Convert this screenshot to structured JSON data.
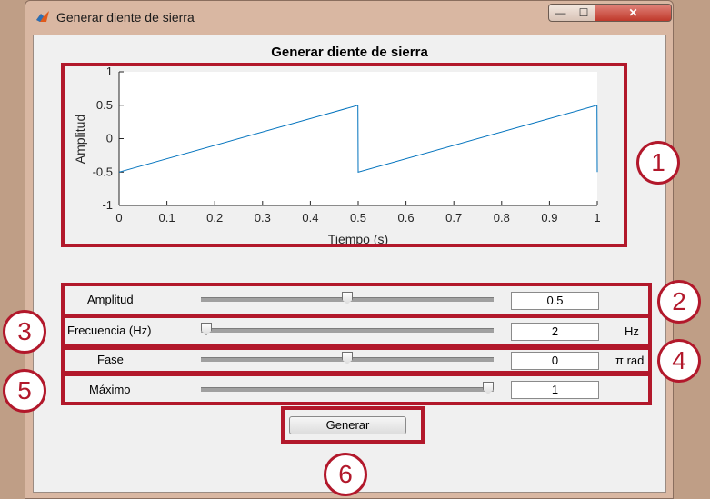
{
  "window": {
    "title": "Generar diente de sierra",
    "controls": {
      "minimize": "—",
      "maximize": "☐",
      "close": "✕"
    }
  },
  "figure": {
    "title": "Generar diente de sierra"
  },
  "chart_data": {
    "type": "line",
    "title": "",
    "xlabel": "Tiempo (s)",
    "ylabel": "Amplitud",
    "xlim": [
      0,
      1
    ],
    "ylim": [
      -1,
      1
    ],
    "x_ticks": [
      "0",
      "0.1",
      "0.2",
      "0.3",
      "0.4",
      "0.5",
      "0.6",
      "0.7",
      "0.8",
      "0.9",
      "1"
    ],
    "y_ticks": [
      "1",
      "0.5",
      "0",
      "-0.5",
      "-1"
    ],
    "series": [
      {
        "color": "#0072bd",
        "x": [
          0,
          0.4995,
          0.5,
          0.9995,
          1.0
        ],
        "y": [
          -0.5,
          0.5,
          -0.5,
          0.5,
          -0.5
        ]
      }
    ],
    "grid": false
  },
  "controls": {
    "amplitud": {
      "label": "Amplitud",
      "value": "0.5",
      "slider_fraction": 0.5
    },
    "frecuencia": {
      "label": "Frecuencia (Hz)",
      "value": "2",
      "unit": "Hz",
      "slider_fraction": 0.0
    },
    "fase": {
      "label": "Fase",
      "value": "0",
      "unit": "π rad",
      "slider_fraction": 0.5
    },
    "maximo": {
      "label": "Máximo",
      "value": "1",
      "slider_fraction": 1.0
    }
  },
  "generate_button": {
    "label": "Generar"
  },
  "callouts": [
    "1",
    "2",
    "3",
    "4",
    "5",
    "6"
  ],
  "colors": {
    "annotation": "#b2182b",
    "line": "#0072bd"
  }
}
